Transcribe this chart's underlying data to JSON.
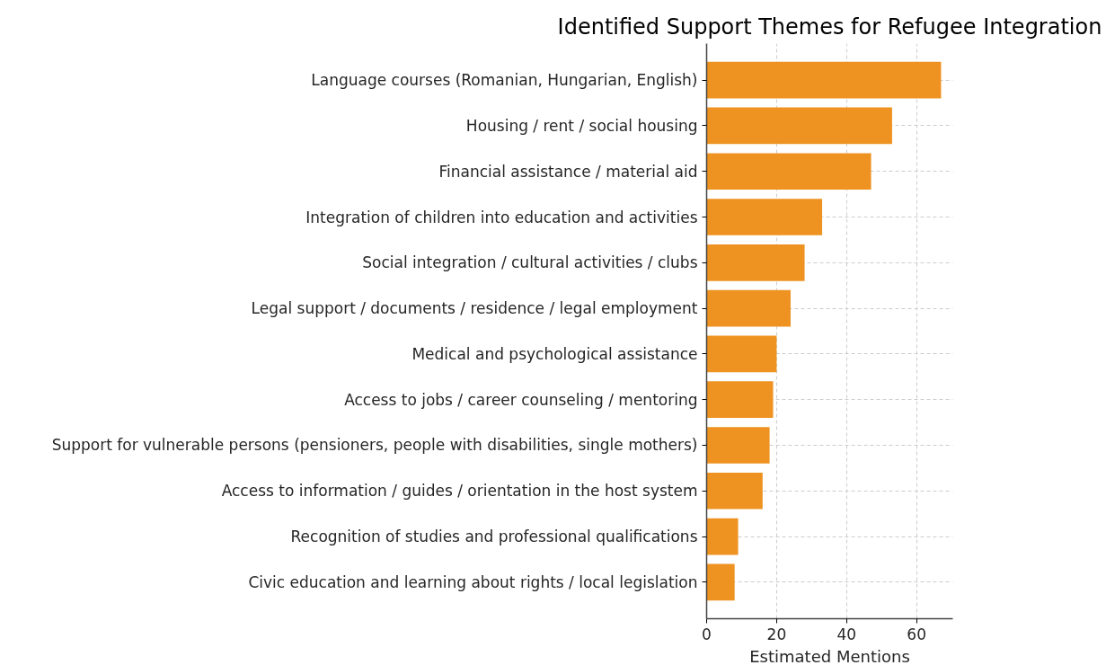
{
  "chart_data": {
    "type": "bar",
    "orientation": "horizontal",
    "title": "Identified Support Themes for Refugee Integration",
    "xlabel": "Estimated Mentions",
    "categories": [
      "Language courses (Romanian, Hungarian, English)",
      "Housing / rent / social housing",
      "Financial assistance / material aid",
      "Integration of children into education and activities",
      "Social integration / cultural activities / clubs",
      "Legal support / documents / residence / legal employment",
      "Medical and psychological assistance",
      "Access to jobs / career counseling / mentoring",
      "Support for vulnerable persons (pensioners, people with disabilities, single mothers)",
      "Access to information / guides / orientation in the host system",
      "Recognition of studies and professional qualifications",
      "Civic education and learning about rights / local legislation"
    ],
    "values": [
      67,
      53,
      47,
      33,
      28,
      24,
      20,
      19,
      18,
      16,
      9,
      8
    ],
    "color": "#ee9322",
    "xlim": [
      0,
      70.35
    ],
    "xticks": [
      0,
      20,
      40,
      60
    ],
    "grid": true
  }
}
